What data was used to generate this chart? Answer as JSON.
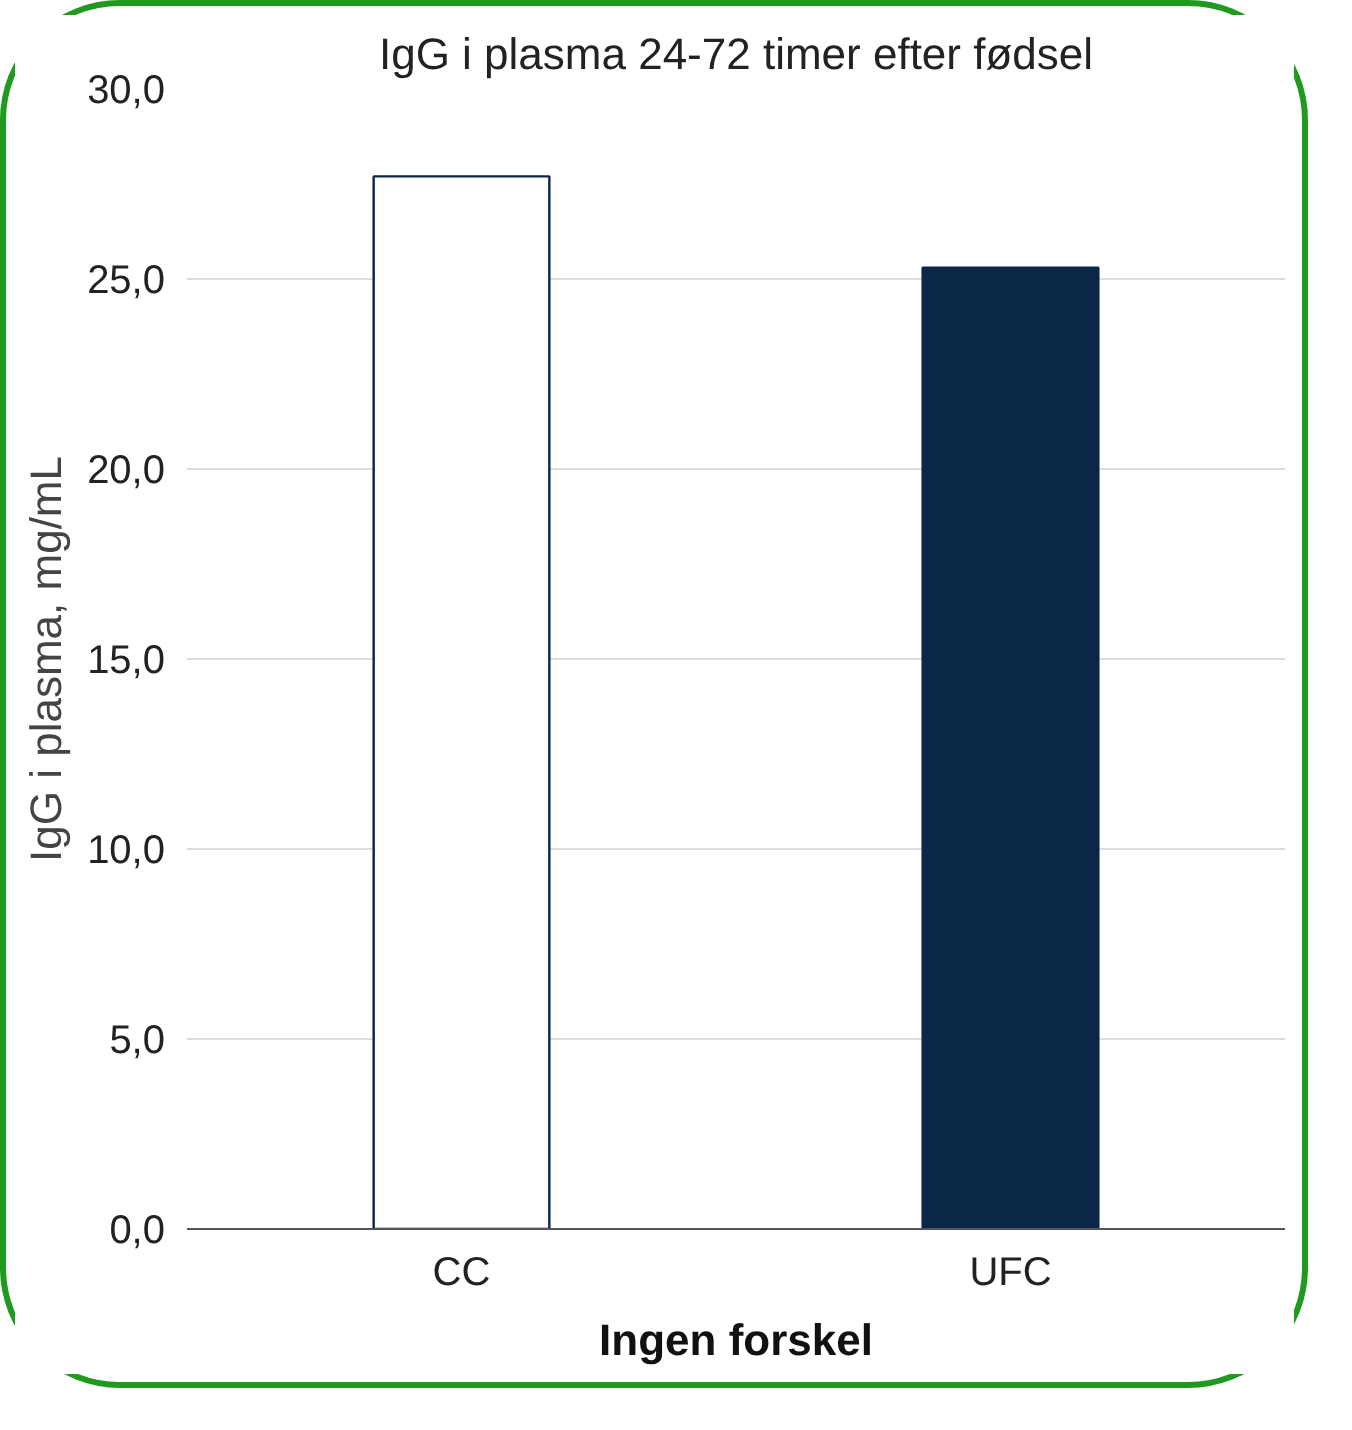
{
  "chart_data": {
    "type": "bar",
    "title": "IgG i plasma 24-72 timer efter fødsel",
    "ylabel": "IgG i plasma, mg/mL",
    "categories": [
      "CC",
      "UFC"
    ],
    "values": [
      27.7,
      25.3
    ],
    "colors": [
      "#ffffff",
      "#0b2747"
    ],
    "ylim": [
      0,
      30
    ],
    "yticks": [
      {
        "value": 0,
        "label": "0,0"
      },
      {
        "value": 5,
        "label": "5,0"
      },
      {
        "value": 10,
        "label": "10,0"
      },
      {
        "value": 15,
        "label": "15,0"
      },
      {
        "value": 20,
        "label": "20,0"
      },
      {
        "value": 25,
        "label": "25,0"
      },
      {
        "value": 30,
        "label": "30,0"
      }
    ],
    "grid": "y",
    "annotations": [
      "Ingen forskel"
    ]
  }
}
